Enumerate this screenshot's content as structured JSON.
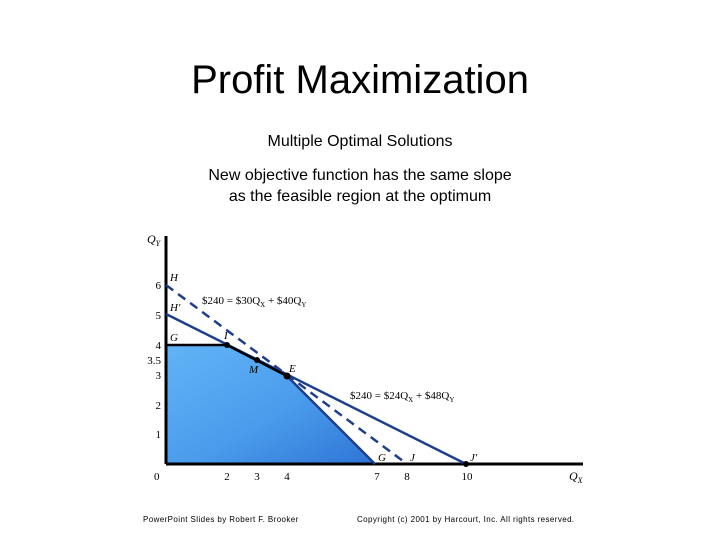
{
  "slide": {
    "title": "Profit Maximization",
    "subtitle": "Multiple Optimal Solutions",
    "description_line1": "New objective function has the same slope",
    "description_line2": "as the feasible region at the optimum"
  },
  "diagram": {
    "y_axis_label": "Q",
    "y_axis_sub": "Y",
    "x_axis_label": "Q",
    "x_axis_sub": "X",
    "origin_label": "0",
    "x_ticks": [
      "2",
      "3",
      "4",
      "7",
      "8",
      "10"
    ],
    "y_ticks": [
      "1",
      "2",
      "3",
      "3.5",
      "4",
      "5",
      "6"
    ],
    "points": {
      "H": "H",
      "H_prime": "H′",
      "G_y": "G",
      "I": "I",
      "M": "M",
      "E": "E",
      "G_x": "G",
      "J": "J",
      "J_prime": "J′"
    },
    "equation1": "$240 = $30Q",
    "equation1_sub1": "X",
    "equation1_mid": " + $40Q",
    "equation1_sub2": "Y",
    "equation2": "$240 = $24Q",
    "equation2_sub1": "X",
    "equation2_mid": " + $48Q",
    "equation2_sub2": "Y",
    "colors": {
      "feasible_region": "#3d8ce6",
      "feasible_region_light": "#5aabf5",
      "lines": "#1e3f8c",
      "axes": "#000000"
    }
  },
  "footer": {
    "left": "PowerPoint Slides by Robert F. Brooker",
    "right": "Copyright (c) 2001 by Harcourt, Inc. All rights reserved."
  }
}
